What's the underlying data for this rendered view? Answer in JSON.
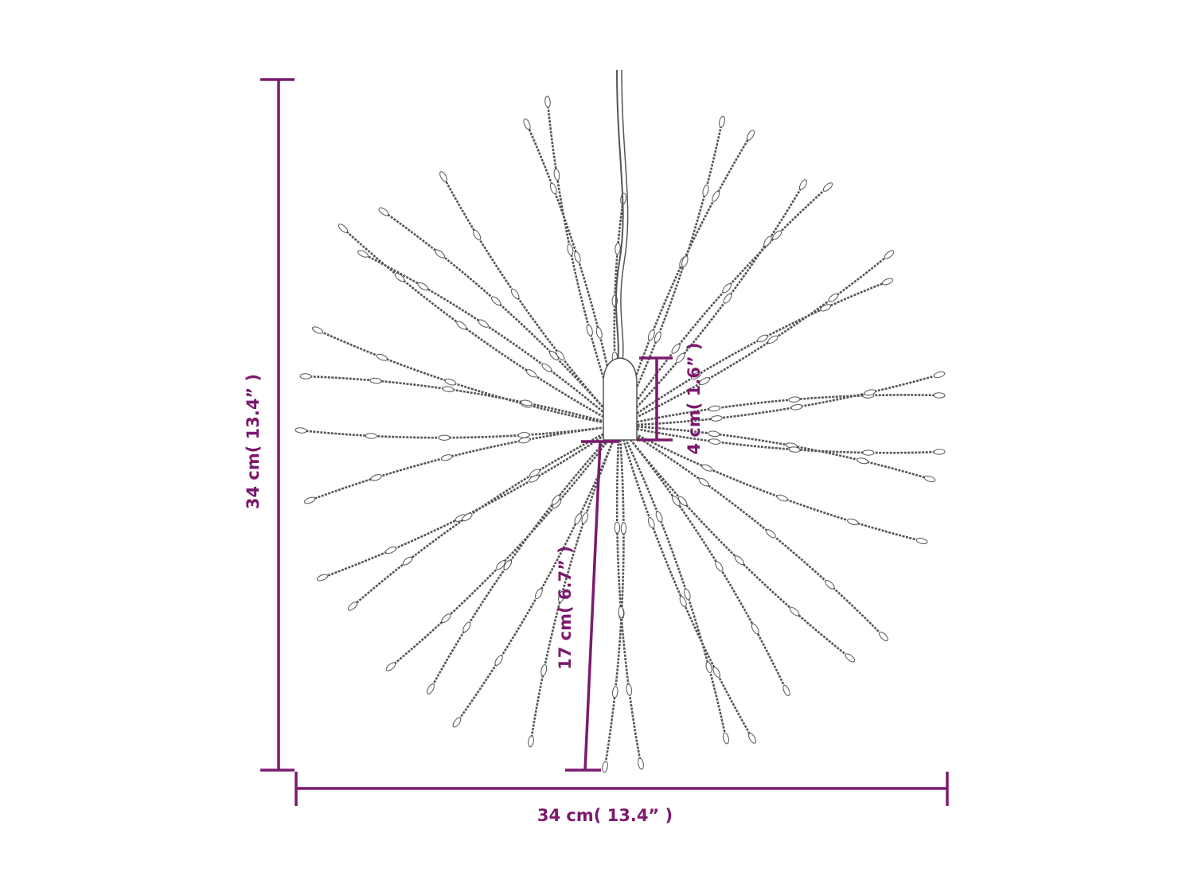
{
  "colors": {
    "dimension": "#7b1a6e",
    "strand": "#555555"
  },
  "dimensions": {
    "height_total": "34 cm( 13.4” )",
    "width_total": "34 cm( 13.4” )",
    "radius": "17 cm( 6.7” )",
    "cap_height": "4 cm( 1.6” )"
  }
}
